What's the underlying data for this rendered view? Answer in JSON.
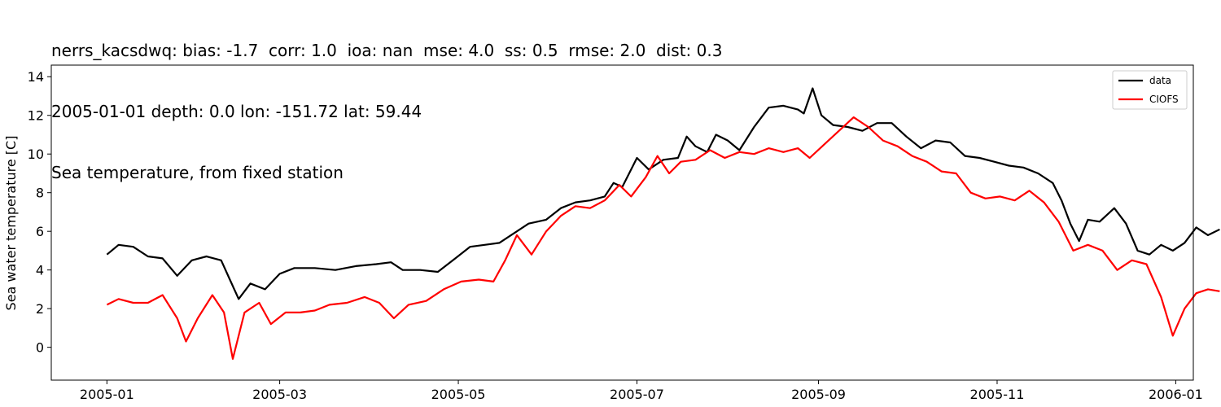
{
  "title_lines": [
    "nerrs_kacsdwq: bias: -1.7  corr: 1.0  ioa: nan  mse: 4.0  ss: 0.5  rmse: 2.0  dist: 0.3",
    "2005-01-01 depth: 0.0 lon: -151.72 lat: 59.44",
    "Sea temperature, from fixed station"
  ],
  "chart_data": {
    "type": "line",
    "xlabel": "",
    "ylabel": "Sea water temperature [C]",
    "xlim": [
      "2004-12-13",
      "2006-01-07"
    ],
    "ylim": [
      -1.7,
      14.6
    ],
    "x_ticks": [
      {
        "date": "2005-01-01",
        "label": "2005-01"
      },
      {
        "date": "2005-03-01",
        "label": "2005-03"
      },
      {
        "date": "2005-05-01",
        "label": "2005-05"
      },
      {
        "date": "2005-07-01",
        "label": "2005-07"
      },
      {
        "date": "2005-09-01",
        "label": "2005-09"
      },
      {
        "date": "2005-11-01",
        "label": "2005-11"
      },
      {
        "date": "2006-01-01",
        "label": "2006-01"
      }
    ],
    "y_ticks": [
      0,
      2,
      4,
      6,
      8,
      10,
      12,
      14
    ],
    "legend": {
      "placement": "top-right",
      "entries": [
        "data",
        "CIOFS"
      ]
    },
    "grid": false,
    "series": [
      {
        "name": "data",
        "color": "#000000",
        "points": [
          [
            "2005-01-01",
            4.8
          ],
          [
            "2005-01-05",
            5.3
          ],
          [
            "2005-01-10",
            5.2
          ],
          [
            "2005-01-15",
            4.7
          ],
          [
            "2005-01-20",
            4.6
          ],
          [
            "2005-01-25",
            3.7
          ],
          [
            "2005-01-30",
            4.5
          ],
          [
            "2005-02-04",
            4.7
          ],
          [
            "2005-02-09",
            4.5
          ],
          [
            "2005-02-12",
            3.5
          ],
          [
            "2005-02-15",
            2.5
          ],
          [
            "2005-02-19",
            3.3
          ],
          [
            "2005-02-24",
            3.0
          ],
          [
            "2005-03-01",
            3.8
          ],
          [
            "2005-03-06",
            4.1
          ],
          [
            "2005-03-13",
            4.1
          ],
          [
            "2005-03-20",
            4.0
          ],
          [
            "2005-03-27",
            4.2
          ],
          [
            "2005-04-03",
            4.3
          ],
          [
            "2005-04-08",
            4.4
          ],
          [
            "2005-04-12",
            4.0
          ],
          [
            "2005-04-18",
            4.0
          ],
          [
            "2005-04-24",
            3.9
          ],
          [
            "2005-04-30",
            4.6
          ],
          [
            "2005-05-05",
            5.2
          ],
          [
            "2005-05-10",
            5.3
          ],
          [
            "2005-05-15",
            5.4
          ],
          [
            "2005-05-20",
            5.9
          ],
          [
            "2005-05-25",
            6.4
          ],
          [
            "2005-05-31",
            6.6
          ],
          [
            "2005-06-05",
            7.2
          ],
          [
            "2005-06-10",
            7.5
          ],
          [
            "2005-06-15",
            7.6
          ],
          [
            "2005-06-20",
            7.8
          ],
          [
            "2005-06-23",
            8.5
          ],
          [
            "2005-06-26",
            8.3
          ],
          [
            "2005-07-01",
            9.8
          ],
          [
            "2005-07-05",
            9.2
          ],
          [
            "2005-07-10",
            9.7
          ],
          [
            "2005-07-15",
            9.8
          ],
          [
            "2005-07-18",
            10.9
          ],
          [
            "2005-07-21",
            10.4
          ],
          [
            "2005-07-25",
            10.1
          ],
          [
            "2005-07-28",
            11.0
          ],
          [
            "2005-08-01",
            10.7
          ],
          [
            "2005-08-05",
            10.2
          ],
          [
            "2005-08-10",
            11.4
          ],
          [
            "2005-08-15",
            12.4
          ],
          [
            "2005-08-20",
            12.5
          ],
          [
            "2005-08-25",
            12.3
          ],
          [
            "2005-08-27",
            12.1
          ],
          [
            "2005-08-30",
            13.4
          ],
          [
            "2005-09-02",
            12.0
          ],
          [
            "2005-09-06",
            11.5
          ],
          [
            "2005-09-11",
            11.4
          ],
          [
            "2005-09-16",
            11.2
          ],
          [
            "2005-09-21",
            11.6
          ],
          [
            "2005-09-26",
            11.6
          ],
          [
            "2005-10-01",
            10.9
          ],
          [
            "2005-10-06",
            10.3
          ],
          [
            "2005-10-11",
            10.7
          ],
          [
            "2005-10-16",
            10.6
          ],
          [
            "2005-10-21",
            9.9
          ],
          [
            "2005-10-26",
            9.8
          ],
          [
            "2005-10-31",
            9.6
          ],
          [
            "2005-11-05",
            9.4
          ],
          [
            "2005-11-10",
            9.3
          ],
          [
            "2005-11-15",
            9.0
          ],
          [
            "2005-11-20",
            8.5
          ],
          [
            "2005-11-23",
            7.6
          ],
          [
            "2005-11-26",
            6.4
          ],
          [
            "2005-11-29",
            5.5
          ],
          [
            "2005-12-02",
            6.6
          ],
          [
            "2005-12-06",
            6.5
          ],
          [
            "2005-12-11",
            7.2
          ],
          [
            "2005-12-15",
            6.4
          ],
          [
            "2005-12-19",
            5.0
          ],
          [
            "2005-12-23",
            4.8
          ],
          [
            "2005-12-27",
            5.3
          ],
          [
            "2005-12-31",
            5.0
          ],
          [
            "2006-01-04",
            5.4
          ],
          [
            "2006-01-08",
            6.2
          ],
          [
            "2006-01-12",
            5.8
          ],
          [
            "2006-01-16",
            6.1
          ]
        ]
      },
      {
        "name": "CIOFS",
        "color": "#ff0000",
        "points": [
          [
            "2005-01-01",
            2.2
          ],
          [
            "2005-01-05",
            2.5
          ],
          [
            "2005-01-10",
            2.3
          ],
          [
            "2005-01-15",
            2.3
          ],
          [
            "2005-01-20",
            2.7
          ],
          [
            "2005-01-25",
            1.5
          ],
          [
            "2005-01-28",
            0.3
          ],
          [
            "2005-02-01",
            1.5
          ],
          [
            "2005-02-06",
            2.7
          ],
          [
            "2005-02-10",
            1.8
          ],
          [
            "2005-02-13",
            -0.6
          ],
          [
            "2005-02-17",
            1.8
          ],
          [
            "2005-02-22",
            2.3
          ],
          [
            "2005-02-26",
            1.2
          ],
          [
            "2005-03-03",
            1.8
          ],
          [
            "2005-03-08",
            1.8
          ],
          [
            "2005-03-13",
            1.9
          ],
          [
            "2005-03-18",
            2.2
          ],
          [
            "2005-03-24",
            2.3
          ],
          [
            "2005-03-30",
            2.6
          ],
          [
            "2005-04-04",
            2.3
          ],
          [
            "2005-04-09",
            1.5
          ],
          [
            "2005-04-14",
            2.2
          ],
          [
            "2005-04-20",
            2.4
          ],
          [
            "2005-04-26",
            3.0
          ],
          [
            "2005-05-02",
            3.4
          ],
          [
            "2005-05-08",
            3.5
          ],
          [
            "2005-05-13",
            3.4
          ],
          [
            "2005-05-17",
            4.5
          ],
          [
            "2005-05-21",
            5.8
          ],
          [
            "2005-05-26",
            4.8
          ],
          [
            "2005-05-31",
            6.0
          ],
          [
            "2005-06-05",
            6.8
          ],
          [
            "2005-06-10",
            7.3
          ],
          [
            "2005-06-15",
            7.2
          ],
          [
            "2005-06-20",
            7.6
          ],
          [
            "2005-06-25",
            8.4
          ],
          [
            "2005-06-29",
            7.8
          ],
          [
            "2005-07-04",
            8.8
          ],
          [
            "2005-07-08",
            9.9
          ],
          [
            "2005-07-12",
            9.0
          ],
          [
            "2005-07-16",
            9.6
          ],
          [
            "2005-07-21",
            9.7
          ],
          [
            "2005-07-26",
            10.2
          ],
          [
            "2005-07-31",
            9.8
          ],
          [
            "2005-08-05",
            10.1
          ],
          [
            "2005-08-10",
            10.0
          ],
          [
            "2005-08-15",
            10.3
          ],
          [
            "2005-08-20",
            10.1
          ],
          [
            "2005-08-25",
            10.3
          ],
          [
            "2005-08-29",
            9.8
          ],
          [
            "2005-09-03",
            10.5
          ],
          [
            "2005-09-08",
            11.2
          ],
          [
            "2005-09-13",
            11.9
          ],
          [
            "2005-09-18",
            11.4
          ],
          [
            "2005-09-23",
            10.7
          ],
          [
            "2005-09-28",
            10.4
          ],
          [
            "2005-10-03",
            9.9
          ],
          [
            "2005-10-08",
            9.6
          ],
          [
            "2005-10-13",
            9.1
          ],
          [
            "2005-10-18",
            9.0
          ],
          [
            "2005-10-23",
            8.0
          ],
          [
            "2005-10-28",
            7.7
          ],
          [
            "2005-11-02",
            7.8
          ],
          [
            "2005-11-07",
            7.6
          ],
          [
            "2005-11-12",
            8.1
          ],
          [
            "2005-11-17",
            7.5
          ],
          [
            "2005-11-22",
            6.5
          ],
          [
            "2005-11-27",
            5.0
          ],
          [
            "2005-12-02",
            5.3
          ],
          [
            "2005-12-07",
            5.0
          ],
          [
            "2005-12-12",
            4.0
          ],
          [
            "2005-12-17",
            4.5
          ],
          [
            "2005-12-22",
            4.3
          ],
          [
            "2005-12-27",
            2.6
          ],
          [
            "2005-12-31",
            0.6
          ],
          [
            "2006-01-04",
            2.0
          ],
          [
            "2006-01-08",
            2.8
          ],
          [
            "2006-01-12",
            3.0
          ],
          [
            "2006-01-16",
            2.9
          ]
        ]
      }
    ]
  }
}
